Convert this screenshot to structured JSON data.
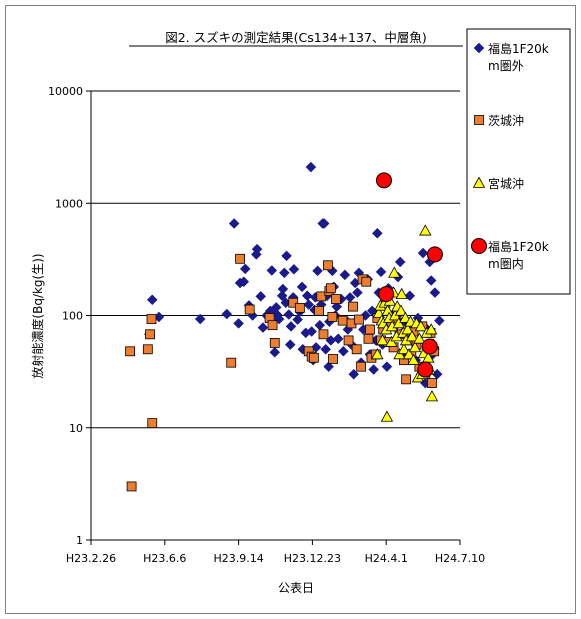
{
  "chart_data": {
    "type": "scatter",
    "title": "図2. スズキの測定結果(Cs134+137、中層魚)",
    "xlabel": "公表日",
    "ylabel": "放射能濃度(Bq/kg(生))",
    "yscale": "log",
    "ylim": [
      1,
      10000
    ],
    "xlim": [
      "2011-02-26",
      "2012-07-10"
    ],
    "x_ticks": [
      {
        "label": "H23.2.26",
        "date": "2011-02-26"
      },
      {
        "label": "H23.6.6",
        "date": "2011-06-06"
      },
      {
        "label": "H23.9.14",
        "date": "2011-09-14"
      },
      {
        "label": "H23.12.23",
        "date": "2011-12-23"
      },
      {
        "label": "H24.4.1",
        "date": "2012-04-01"
      },
      {
        "label": "H24.7.10",
        "date": "2012-07-10"
      }
    ],
    "y_ticks": [
      {
        "label": "1",
        "value": 1
      },
      {
        "label": "10",
        "value": 10
      },
      {
        "label": "100",
        "value": 100
      },
      {
        "label": "1000",
        "value": 1000
      },
      {
        "label": "10000",
        "value": 10000
      }
    ],
    "grid": "horizontal",
    "legend_position": "right",
    "series": [
      {
        "name": "福島1F20km圏外",
        "legend_lines": [
          "福島1F20k",
          "m圏外"
        ],
        "marker": "diamond",
        "color": "#1a1a8c",
        "points": [
          {
            "x": "2011-05-20",
            "y": 138
          },
          {
            "x": "2011-05-16",
            "y": 68
          },
          {
            "x": "2011-05-29",
            "y": 97
          },
          {
            "x": "2011-07-24",
            "y": 93
          },
          {
            "x": "2011-08-29",
            "y": 103
          },
          {
            "x": "2011-09-08",
            "y": 660
          },
          {
            "x": "2011-09-14",
            "y": 85
          },
          {
            "x": "2011-09-16",
            "y": 195
          },
          {
            "x": "2011-09-21",
            "y": 200
          },
          {
            "x": "2011-09-23",
            "y": 260
          },
          {
            "x": "2011-09-28",
            "y": 123
          },
          {
            "x": "2011-10-03",
            "y": 100
          },
          {
            "x": "2011-10-08",
            "y": 350
          },
          {
            "x": "2011-10-09",
            "y": 390
          },
          {
            "x": "2011-10-14",
            "y": 148
          },
          {
            "x": "2011-10-17",
            "y": 78
          },
          {
            "x": "2011-10-22",
            "y": 100
          },
          {
            "x": "2011-10-27",
            "y": 110
          },
          {
            "x": "2011-10-29",
            "y": 252
          },
          {
            "x": "2011-11-02",
            "y": 47
          },
          {
            "x": "2011-11-04",
            "y": 118
          },
          {
            "x": "2011-11-05",
            "y": 102
          },
          {
            "x": "2011-11-08",
            "y": 93
          },
          {
            "x": "2011-11-12",
            "y": 150
          },
          {
            "x": "2011-11-13",
            "y": 172
          },
          {
            "x": "2011-11-15",
            "y": 240
          },
          {
            "x": "2011-11-17",
            "y": 130
          },
          {
            "x": "2011-11-18",
            "y": 340
          },
          {
            "x": "2011-11-21",
            "y": 102
          },
          {
            "x": "2011-11-23",
            "y": 55
          },
          {
            "x": "2011-11-24",
            "y": 80
          },
          {
            "x": "2011-11-27",
            "y": 145
          },
          {
            "x": "2011-11-28",
            "y": 258
          },
          {
            "x": "2011-12-03",
            "y": 92
          },
          {
            "x": "2011-12-06",
            "y": 108
          },
          {
            "x": "2011-12-09",
            "y": 180
          },
          {
            "x": "2011-12-10",
            "y": 50
          },
          {
            "x": "2011-12-14",
            "y": 70
          },
          {
            "x": "2011-12-16",
            "y": 150
          },
          {
            "x": "2011-12-18",
            "y": 125
          },
          {
            "x": "2011-12-21",
            "y": 2100
          },
          {
            "x": "2011-12-22",
            "y": 72
          },
          {
            "x": "2011-12-24",
            "y": 40
          },
          {
            "x": "2011-12-26",
            "y": 112
          },
          {
            "x": "2011-12-27",
            "y": 145
          },
          {
            "x": "2011-12-28",
            "y": 52
          },
          {
            "x": "2011-12-30",
            "y": 250
          },
          {
            "x": "2012-01-02",
            "y": 82
          },
          {
            "x": "2012-01-04",
            "y": 125
          },
          {
            "x": "2012-01-06",
            "y": 660
          },
          {
            "x": "2012-01-08",
            "y": 660
          },
          {
            "x": "2012-01-10",
            "y": 50
          },
          {
            "x": "2012-01-12",
            "y": 150
          },
          {
            "x": "2012-01-14",
            "y": 35
          },
          {
            "x": "2012-01-15",
            "y": 88
          },
          {
            "x": "2012-01-17",
            "y": 60
          },
          {
            "x": "2012-01-19",
            "y": 250
          },
          {
            "x": "2012-01-21",
            "y": 180
          },
          {
            "x": "2012-01-23",
            "y": 100
          },
          {
            "x": "2012-01-25",
            "y": 120
          },
          {
            "x": "2012-01-27",
            "y": 62
          },
          {
            "x": "2012-01-31",
            "y": 140
          },
          {
            "x": "2012-02-03",
            "y": 48
          },
          {
            "x": "2012-02-05",
            "y": 230
          },
          {
            "x": "2012-02-07",
            "y": 90
          },
          {
            "x": "2012-02-09",
            "y": 75
          },
          {
            "x": "2012-02-12",
            "y": 145
          },
          {
            "x": "2012-02-14",
            "y": 55
          },
          {
            "x": "2012-02-17",
            "y": 30
          },
          {
            "x": "2012-02-19",
            "y": 195
          },
          {
            "x": "2012-02-22",
            "y": 160
          },
          {
            "x": "2012-02-24",
            "y": 240
          },
          {
            "x": "2012-02-27",
            "y": 38
          },
          {
            "x": "2012-03-01",
            "y": 75
          },
          {
            "x": "2012-03-04",
            "y": 100
          },
          {
            "x": "2012-03-07",
            "y": 210
          },
          {
            "x": "2012-03-10",
            "y": 45
          },
          {
            "x": "2012-03-13",
            "y": 110
          },
          {
            "x": "2012-03-15",
            "y": 33
          },
          {
            "x": "2012-03-18",
            "y": 60
          },
          {
            "x": "2012-03-20",
            "y": 540
          },
          {
            "x": "2012-03-22",
            "y": 160
          },
          {
            "x": "2012-03-25",
            "y": 245
          },
          {
            "x": "2012-03-27",
            "y": 55
          },
          {
            "x": "2012-03-30",
            "y": 130
          },
          {
            "x": "2012-04-02",
            "y": 35
          },
          {
            "x": "2012-04-04",
            "y": 175
          },
          {
            "x": "2012-04-09",
            "y": 100
          },
          {
            "x": "2012-04-13",
            "y": 80
          },
          {
            "x": "2012-04-17",
            "y": 220
          },
          {
            "x": "2012-04-20",
            "y": 300
          },
          {
            "x": "2012-04-23",
            "y": 70
          },
          {
            "x": "2012-04-26",
            "y": 45
          },
          {
            "x": "2012-04-29",
            "y": 85
          },
          {
            "x": "2012-05-03",
            "y": 150
          },
          {
            "x": "2012-05-07",
            "y": 60
          },
          {
            "x": "2012-05-11",
            "y": 40
          },
          {
            "x": "2012-05-14",
            "y": 95
          },
          {
            "x": "2012-05-18",
            "y": 30
          },
          {
            "x": "2012-05-21",
            "y": 360
          },
          {
            "x": "2012-05-24",
            "y": 25
          },
          {
            "x": "2012-05-27",
            "y": 75
          },
          {
            "x": "2012-05-30",
            "y": 300
          },
          {
            "x": "2012-06-01",
            "y": 205
          },
          {
            "x": "2012-06-03",
            "y": 45
          },
          {
            "x": "2012-06-06",
            "y": 160
          },
          {
            "x": "2012-06-09",
            "y": 30
          },
          {
            "x": "2012-06-12",
            "y": 90
          }
        ]
      },
      {
        "name": "茨城沖",
        "legend_lines": [
          "茨城沖"
        ],
        "marker": "square",
        "color": "#ed7d31",
        "points": [
          {
            "x": "2011-04-20",
            "y": 48
          },
          {
            "x": "2011-04-22",
            "y": 3
          },
          {
            "x": "2011-05-14",
            "y": 50
          },
          {
            "x": "2011-05-17",
            "y": 68
          },
          {
            "x": "2011-05-19",
            "y": 93
          },
          {
            "x": "2011-05-20",
            "y": 11
          },
          {
            "x": "2011-09-04",
            "y": 38
          },
          {
            "x": "2011-09-16",
            "y": 320
          },
          {
            "x": "2011-09-29",
            "y": 113
          },
          {
            "x": "2011-10-26",
            "y": 95
          },
          {
            "x": "2011-10-30",
            "y": 82
          },
          {
            "x": "2011-11-02",
            "y": 57
          },
          {
            "x": "2011-11-27",
            "y": 130
          },
          {
            "x": "2011-12-06",
            "y": 117
          },
          {
            "x": "2011-12-18",
            "y": 48
          },
          {
            "x": "2011-12-22",
            "y": 43
          },
          {
            "x": "2011-12-25",
            "y": 42
          },
          {
            "x": "2012-01-01",
            "y": 110
          },
          {
            "x": "2012-01-04",
            "y": 148
          },
          {
            "x": "2012-01-07",
            "y": 68
          },
          {
            "x": "2012-01-13",
            "y": 280
          },
          {
            "x": "2012-01-15",
            "y": 165
          },
          {
            "x": "2012-01-17",
            "y": 175
          },
          {
            "x": "2012-01-19",
            "y": 97
          },
          {
            "x": "2012-01-20",
            "y": 41
          },
          {
            "x": "2012-01-24",
            "y": 140
          },
          {
            "x": "2012-02-02",
            "y": 90
          },
          {
            "x": "2012-02-10",
            "y": 60
          },
          {
            "x": "2012-02-14",
            "y": 85
          },
          {
            "x": "2012-02-16",
            "y": 120
          },
          {
            "x": "2012-02-21",
            "y": 50
          },
          {
            "x": "2012-02-24",
            "y": 92
          },
          {
            "x": "2012-02-27",
            "y": 35
          },
          {
            "x": "2012-02-29",
            "y": 210
          },
          {
            "x": "2012-03-05",
            "y": 200
          },
          {
            "x": "2012-03-08",
            "y": 62
          },
          {
            "x": "2012-03-10",
            "y": 75
          },
          {
            "x": "2012-03-12",
            "y": 42
          },
          {
            "x": "2012-03-18",
            "y": 45
          },
          {
            "x": "2012-03-20",
            "y": 95
          },
          {
            "x": "2012-03-25",
            "y": 60
          },
          {
            "x": "2012-03-28",
            "y": 75
          },
          {
            "x": "2012-04-03",
            "y": 58
          },
          {
            "x": "2012-04-08",
            "y": 80
          },
          {
            "x": "2012-04-11",
            "y": 52
          },
          {
            "x": "2012-04-15",
            "y": 90
          },
          {
            "x": "2012-04-19",
            "y": 68
          },
          {
            "x": "2012-04-25",
            "y": 40
          },
          {
            "x": "2012-04-28",
            "y": 27
          },
          {
            "x": "2012-05-02",
            "y": 60
          },
          {
            "x": "2012-05-05",
            "y": 45
          },
          {
            "x": "2012-05-08",
            "y": 72
          },
          {
            "x": "2012-05-12",
            "y": 55
          },
          {
            "x": "2012-05-16",
            "y": 35
          },
          {
            "x": "2012-05-20",
            "y": 80
          },
          {
            "x": "2012-05-24",
            "y": 30
          },
          {
            "x": "2012-05-27",
            "y": 50
          },
          {
            "x": "2012-05-31",
            "y": 70
          },
          {
            "x": "2012-06-02",
            "y": 25
          },
          {
            "x": "2012-06-05",
            "y": 48
          }
        ]
      },
      {
        "name": "宮城沖",
        "legend_lines": [
          "宮城沖"
        ],
        "marker": "triangle",
        "color": "#ffff00",
        "points": [
          {
            "x": "2012-03-20",
            "y": 45
          },
          {
            "x": "2012-03-22",
            "y": 105
          },
          {
            "x": "2012-03-24",
            "y": 122
          },
          {
            "x": "2012-03-26",
            "y": 90
          },
          {
            "x": "2012-03-27",
            "y": 60
          },
          {
            "x": "2012-03-28",
            "y": 85
          },
          {
            "x": "2012-03-30",
            "y": 130
          },
          {
            "x": "2012-04-01",
            "y": 75
          },
          {
            "x": "2012-04-02",
            "y": 12.5
          },
          {
            "x": "2012-04-03",
            "y": 110
          },
          {
            "x": "2012-04-05",
            "y": 95
          },
          {
            "x": "2012-04-06",
            "y": 135
          },
          {
            "x": "2012-04-08",
            "y": 58
          },
          {
            "x": "2012-04-09",
            "y": 80
          },
          {
            "x": "2012-04-11",
            "y": 160
          },
          {
            "x": "2012-04-12",
            "y": 240
          },
          {
            "x": "2012-04-13",
            "y": 100
          },
          {
            "x": "2012-04-15",
            "y": 65
          },
          {
            "x": "2012-04-16",
            "y": 120
          },
          {
            "x": "2012-04-18",
            "y": 85
          },
          {
            "x": "2012-04-19",
            "y": 45
          },
          {
            "x": "2012-04-21",
            "y": 110
          },
          {
            "x": "2012-04-22",
            "y": 155
          },
          {
            "x": "2012-04-24",
            "y": 70
          },
          {
            "x": "2012-04-25",
            "y": 50
          },
          {
            "x": "2012-04-27",
            "y": 95
          },
          {
            "x": "2012-04-28",
            "y": 60
          },
          {
            "x": "2012-04-30",
            "y": 75
          },
          {
            "x": "2012-05-02",
            "y": 45
          },
          {
            "x": "2012-05-04",
            "y": 88
          },
          {
            "x": "2012-05-06",
            "y": 65
          },
          {
            "x": "2012-05-08",
            "y": 40
          },
          {
            "x": "2012-05-10",
            "y": 52
          },
          {
            "x": "2012-05-12",
            "y": 85
          },
          {
            "x": "2012-05-14",
            "y": 28
          },
          {
            "x": "2012-05-16",
            "y": 62
          },
          {
            "x": "2012-05-18",
            "y": 80
          },
          {
            "x": "2012-05-20",
            "y": 30
          },
          {
            "x": "2012-05-22",
            "y": 46
          },
          {
            "x": "2012-05-24",
            "y": 570
          },
          {
            "x": "2012-05-26",
            "y": 70
          },
          {
            "x": "2012-05-28",
            "y": 42
          },
          {
            "x": "2012-05-30",
            "y": 33
          },
          {
            "x": "2012-06-01",
            "y": 75
          },
          {
            "x": "2012-06-02",
            "y": 19
          },
          {
            "x": "2012-06-04",
            "y": 55
          }
        ]
      },
      {
        "name": "福島1F20km圏内",
        "legend_lines": [
          "福島1F20k",
          "m圏内"
        ],
        "marker": "circle",
        "color": "#ff0000",
        "points": [
          {
            "x": "2012-03-29",
            "y": 1600
          },
          {
            "x": "2012-04-01",
            "y": 155
          },
          {
            "x": "2012-05-24",
            "y": 33
          },
          {
            "x": "2012-05-30",
            "y": 53
          },
          {
            "x": "2012-06-06",
            "y": 350
          }
        ]
      }
    ]
  }
}
